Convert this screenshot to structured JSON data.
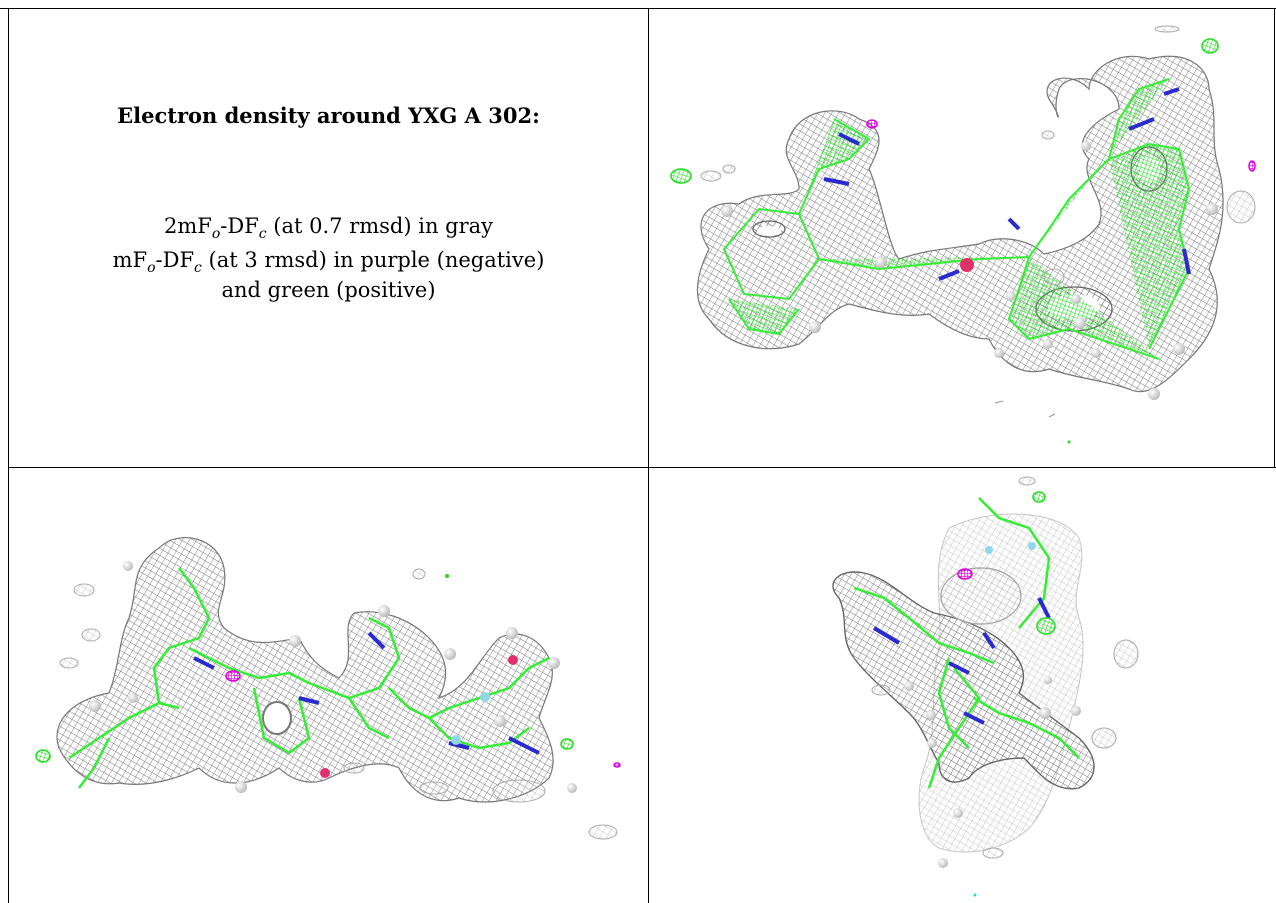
{
  "caption": {
    "title": "Electron density around YXG A 302:",
    "line1_pre": "2mF",
    "line1_sub1": "o",
    "line1_mid": "-DF",
    "line1_sub2": "c",
    "line1_post": " (at 0.7 rmsd) in gray",
    "line2_pre": "mF",
    "line2_sub1": "o",
    "line2_mid": "-DF",
    "line2_sub2": "c",
    "line2_post": " (at 3 rmsd) in purple (negative)",
    "line3": "and green (positive)"
  },
  "colors": {
    "mesh_gray": "#8a8a8a",
    "carbon_green": "#33ee33",
    "nitrogen_blue": "#2a2ad0",
    "oxygen_red": "#e0306a",
    "fluorine_cyan": "#8fd8e8",
    "negative_purple": "#dd00dd",
    "positive_green": "#22dd22",
    "hydrogen_white": "#f2f2f2"
  },
  "panels": [
    {
      "name": "view-top-right",
      "description_icon": "density-map-icon"
    },
    {
      "name": "view-bottom-left",
      "description_icon": "density-map-icon"
    },
    {
      "name": "view-bottom-right",
      "description_icon": "density-map-icon"
    }
  ]
}
